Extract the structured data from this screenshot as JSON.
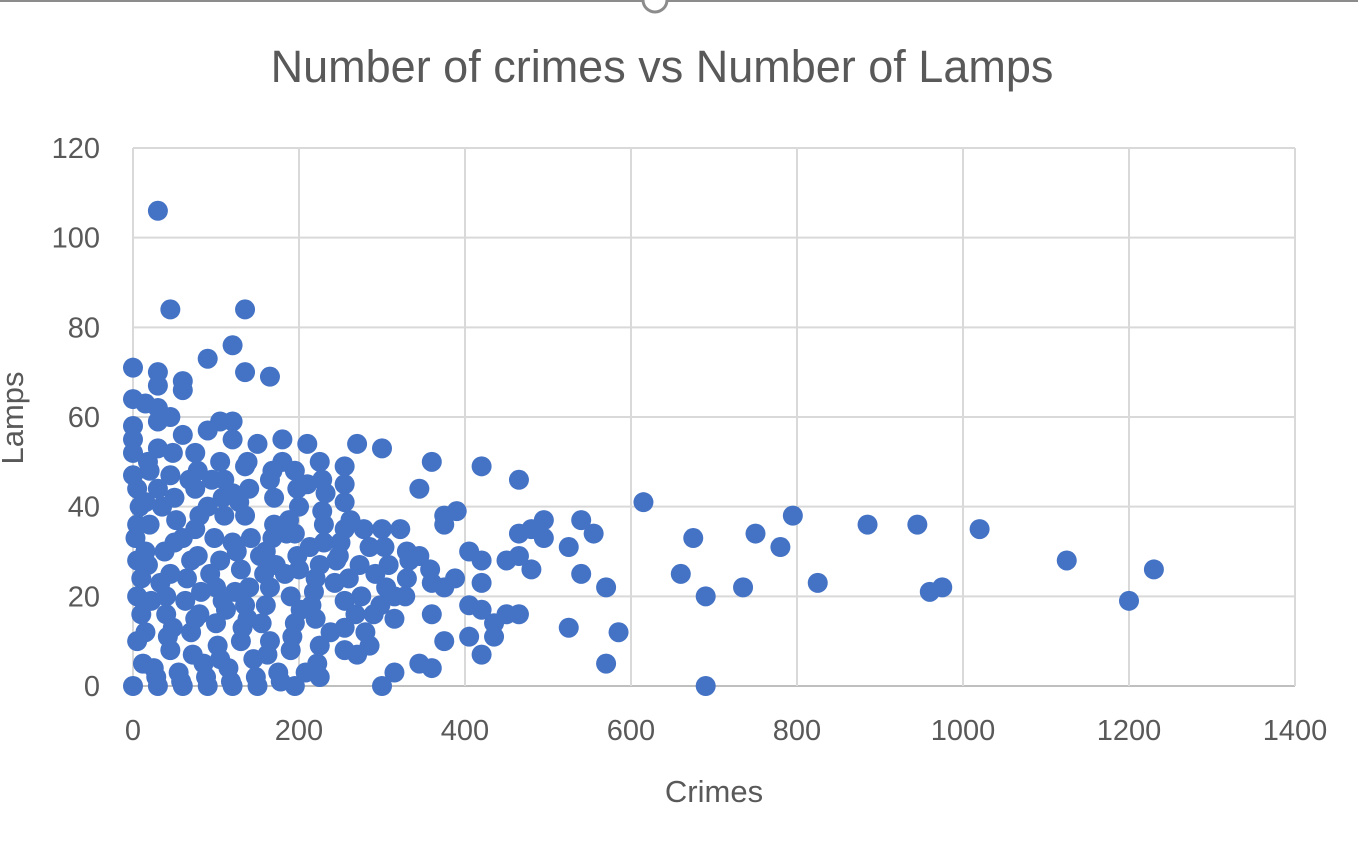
{
  "chart_data": {
    "type": "scatter",
    "title": "Number of crimes vs Number of Lamps",
    "xlabel": "Crimes",
    "ylabel": "Lamps",
    "xlim": [
      0,
      1400
    ],
    "ylim": [
      0,
      120
    ],
    "xticks": [
      0,
      200,
      400,
      600,
      800,
      1000,
      1200,
      1400
    ],
    "yticks": [
      0,
      20,
      40,
      60,
      80,
      100,
      120
    ],
    "grid": true,
    "legend": "none",
    "marker_color": "#4472c4",
    "series": [
      {
        "points": [
          [
            30,
            106
          ],
          [
            45,
            84
          ],
          [
            135,
            84
          ],
          [
            120,
            76
          ],
          [
            90,
            73
          ],
          [
            0,
            71
          ],
          [
            30,
            70
          ],
          [
            135,
            70
          ],
          [
            165,
            69
          ],
          [
            60,
            68
          ],
          [
            30,
            67
          ],
          [
            60,
            66
          ],
          [
            0,
            64
          ],
          [
            15,
            63
          ],
          [
            30,
            62
          ],
          [
            45,
            60
          ],
          [
            105,
            59
          ],
          [
            120,
            59
          ],
          [
            30,
            59
          ],
          [
            0,
            58
          ],
          [
            90,
            57
          ],
          [
            60,
            56
          ],
          [
            120,
            55
          ],
          [
            0,
            55
          ],
          [
            180,
            55
          ],
          [
            150,
            54
          ],
          [
            210,
            54
          ],
          [
            270,
            54
          ],
          [
            300,
            53
          ],
          [
            30,
            53
          ],
          [
            75,
            52
          ],
          [
            0,
            52
          ],
          [
            105,
            50
          ],
          [
            180,
            50
          ],
          [
            225,
            50
          ],
          [
            360,
            50
          ],
          [
            135,
            49
          ],
          [
            255,
            49
          ],
          [
            195,
            48
          ],
          [
            420,
            49
          ],
          [
            0,
            47
          ],
          [
            45,
            47
          ],
          [
            165,
            46
          ],
          [
            465,
            46
          ],
          [
            210,
            45
          ],
          [
            255,
            45
          ],
          [
            345,
            44
          ],
          [
            30,
            44
          ],
          [
            75,
            44
          ],
          [
            120,
            43
          ],
          [
            615,
            41
          ],
          [
            255,
            41
          ],
          [
            15,
            41
          ],
          [
            90,
            40
          ],
          [
            390,
            39
          ],
          [
            375,
            38
          ],
          [
            795,
            38
          ],
          [
            495,
            37
          ],
          [
            540,
            37
          ],
          [
            375,
            36
          ],
          [
            885,
            36
          ],
          [
            945,
            36
          ],
          [
            255,
            35
          ],
          [
            300,
            35
          ],
          [
            1020,
            35
          ],
          [
            480,
            35
          ],
          [
            465,
            34
          ],
          [
            555,
            34
          ],
          [
            750,
            34
          ],
          [
            60,
            33
          ],
          [
            675,
            33
          ],
          [
            495,
            33
          ],
          [
            120,
            32
          ],
          [
            525,
            31
          ],
          [
            780,
            31
          ],
          [
            405,
            30
          ],
          [
            330,
            30
          ],
          [
            345,
            29
          ],
          [
            465,
            29
          ],
          [
            420,
            28
          ],
          [
            450,
            28
          ],
          [
            1125,
            28
          ],
          [
            480,
            26
          ],
          [
            1230,
            26
          ],
          [
            540,
            25
          ],
          [
            660,
            25
          ],
          [
            330,
            24
          ],
          [
            360,
            23
          ],
          [
            420,
            23
          ],
          [
            825,
            23
          ],
          [
            735,
            22
          ],
          [
            375,
            22
          ],
          [
            570,
            22
          ],
          [
            975,
            22
          ],
          [
            960,
            21
          ],
          [
            315,
            20
          ],
          [
            690,
            20
          ],
          [
            1200,
            19
          ],
          [
            405,
            18
          ],
          [
            420,
            17
          ],
          [
            450,
            16
          ],
          [
            465,
            16
          ],
          [
            360,
            16
          ],
          [
            315,
            15
          ],
          [
            435,
            14
          ],
          [
            525,
            13
          ],
          [
            585,
            12
          ],
          [
            405,
            11
          ],
          [
            435,
            11
          ],
          [
            375,
            10
          ],
          [
            285,
            9
          ],
          [
            255,
            8
          ],
          [
            420,
            7
          ],
          [
            270,
            7
          ],
          [
            345,
            5
          ],
          [
            570,
            5
          ],
          [
            360,
            4
          ],
          [
            315,
            3
          ],
          [
            225,
            2
          ],
          [
            195,
            0
          ],
          [
            300,
            0
          ],
          [
            690,
            0
          ],
          [
            150,
            0
          ],
          [
            0,
            0
          ],
          [
            30,
            0
          ],
          [
            60,
            0
          ],
          [
            90,
            0
          ],
          [
            120,
            0
          ],
          [
            15,
            30
          ],
          [
            45,
            25
          ],
          [
            75,
            35
          ],
          [
            105,
            28
          ],
          [
            135,
            38
          ],
          [
            165,
            22
          ],
          [
            195,
            34
          ],
          [
            225,
            27
          ],
          [
            255,
            19
          ],
          [
            285,
            31
          ],
          [
            15,
            12
          ],
          [
            45,
            8
          ],
          [
            75,
            15
          ],
          [
            105,
            6
          ],
          [
            135,
            18
          ],
          [
            165,
            10
          ],
          [
            195,
            14
          ],
          [
            225,
            9
          ],
          [
            255,
            13
          ],
          [
            5,
            44
          ],
          [
            5,
            36
          ],
          [
            5,
            28
          ],
          [
            5,
            20
          ],
          [
            5,
            10
          ],
          [
            20,
            48
          ],
          [
            35,
            40
          ],
          [
            50,
            32
          ],
          [
            65,
            24
          ],
          [
            80,
            16
          ],
          [
            95,
            46
          ],
          [
            110,
            38
          ],
          [
            125,
            30
          ],
          [
            140,
            22
          ],
          [
            155,
            14
          ],
          [
            170,
            42
          ],
          [
            185,
            34
          ],
          [
            200,
            26
          ],
          [
            215,
            18
          ],
          [
            230,
            36
          ],
          [
            245,
            28
          ],
          [
            260,
            24
          ],
          [
            275,
            20
          ],
          [
            290,
            16
          ],
          [
            305,
            22
          ],
          [
            25,
            4
          ],
          [
            55,
            3
          ],
          [
            85,
            5
          ],
          [
            115,
            4
          ],
          [
            145,
            6
          ],
          [
            175,
            3
          ],
          [
            10,
            16
          ],
          [
            40,
            20
          ],
          [
            70,
            12
          ],
          [
            100,
            22
          ],
          [
            130,
            26
          ],
          [
            160,
            30
          ],
          [
            190,
            20
          ],
          [
            220,
            24
          ],
          [
            250,
            32
          ],
          [
            280,
            12
          ],
          [
            20,
            36
          ],
          [
            50,
            42
          ],
          [
            80,
            38
          ],
          [
            110,
            46
          ],
          [
            140,
            44
          ],
          [
            170,
            36
          ],
          [
            200,
            40
          ],
          [
            230,
            32
          ],
          [
            10,
            24
          ],
          [
            40,
            16
          ],
          [
            70,
            28
          ],
          [
            100,
            14
          ],
          [
            130,
            10
          ],
          [
            160,
            18
          ],
          [
            190,
            8
          ],
          [
            220,
            15
          ],
          [
            12,
            5
          ],
          [
            42,
            11
          ],
          [
            72,
            7
          ],
          [
            102,
            9
          ],
          [
            132,
            13
          ],
          [
            162,
            7
          ],
          [
            192,
            11
          ],
          [
            222,
            5
          ],
          [
            8,
            40
          ],
          [
            38,
            30
          ],
          [
            68,
            46
          ],
          [
            98,
            33
          ],
          [
            128,
            41
          ],
          [
            158,
            25
          ],
          [
            188,
            37
          ],
          [
            218,
            21
          ],
          [
            248,
            29
          ],
          [
            278,
            35
          ],
          [
            308,
            27
          ],
          [
            22,
            19
          ],
          [
            52,
            37
          ],
          [
            82,
            21
          ],
          [
            112,
            17
          ],
          [
            142,
            33
          ],
          [
            172,
            27
          ],
          [
            202,
            17
          ],
          [
            232,
            43
          ],
          [
            262,
            37
          ],
          [
            292,
            25
          ],
          [
            322,
            35
          ],
          [
            18,
            50
          ],
          [
            48,
            52
          ],
          [
            78,
            48
          ],
          [
            108,
            42
          ],
          [
            138,
            50
          ],
          [
            168,
            48
          ],
          [
            198,
            44
          ],
          [
            228,
            46
          ],
          [
            28,
            2
          ],
          [
            58,
            1
          ],
          [
            88,
            2
          ],
          [
            118,
            1
          ],
          [
            148,
            2
          ],
          [
            178,
            1
          ],
          [
            208,
            3
          ],
          [
            238,
            12
          ],
          [
            268,
            16
          ],
          [
            298,
            18
          ],
          [
            328,
            20
          ],
          [
            358,
            26
          ],
          [
            388,
            24
          ],
          [
            18,
            27
          ],
          [
            48,
            13
          ],
          [
            78,
            29
          ],
          [
            108,
            19
          ],
          [
            138,
            15
          ],
          [
            168,
            33
          ],
          [
            198,
            29
          ],
          [
            228,
            39
          ],
          [
            3,
            33
          ],
          [
            33,
            23
          ],
          [
            63,
            19
          ],
          [
            93,
            25
          ],
          [
            123,
            21
          ],
          [
            153,
            29
          ],
          [
            183,
            25
          ],
          [
            213,
            31
          ],
          [
            243,
            23
          ],
          [
            273,
            27
          ],
          [
            303,
            31
          ],
          [
            333,
            28
          ]
        ]
      }
    ]
  }
}
